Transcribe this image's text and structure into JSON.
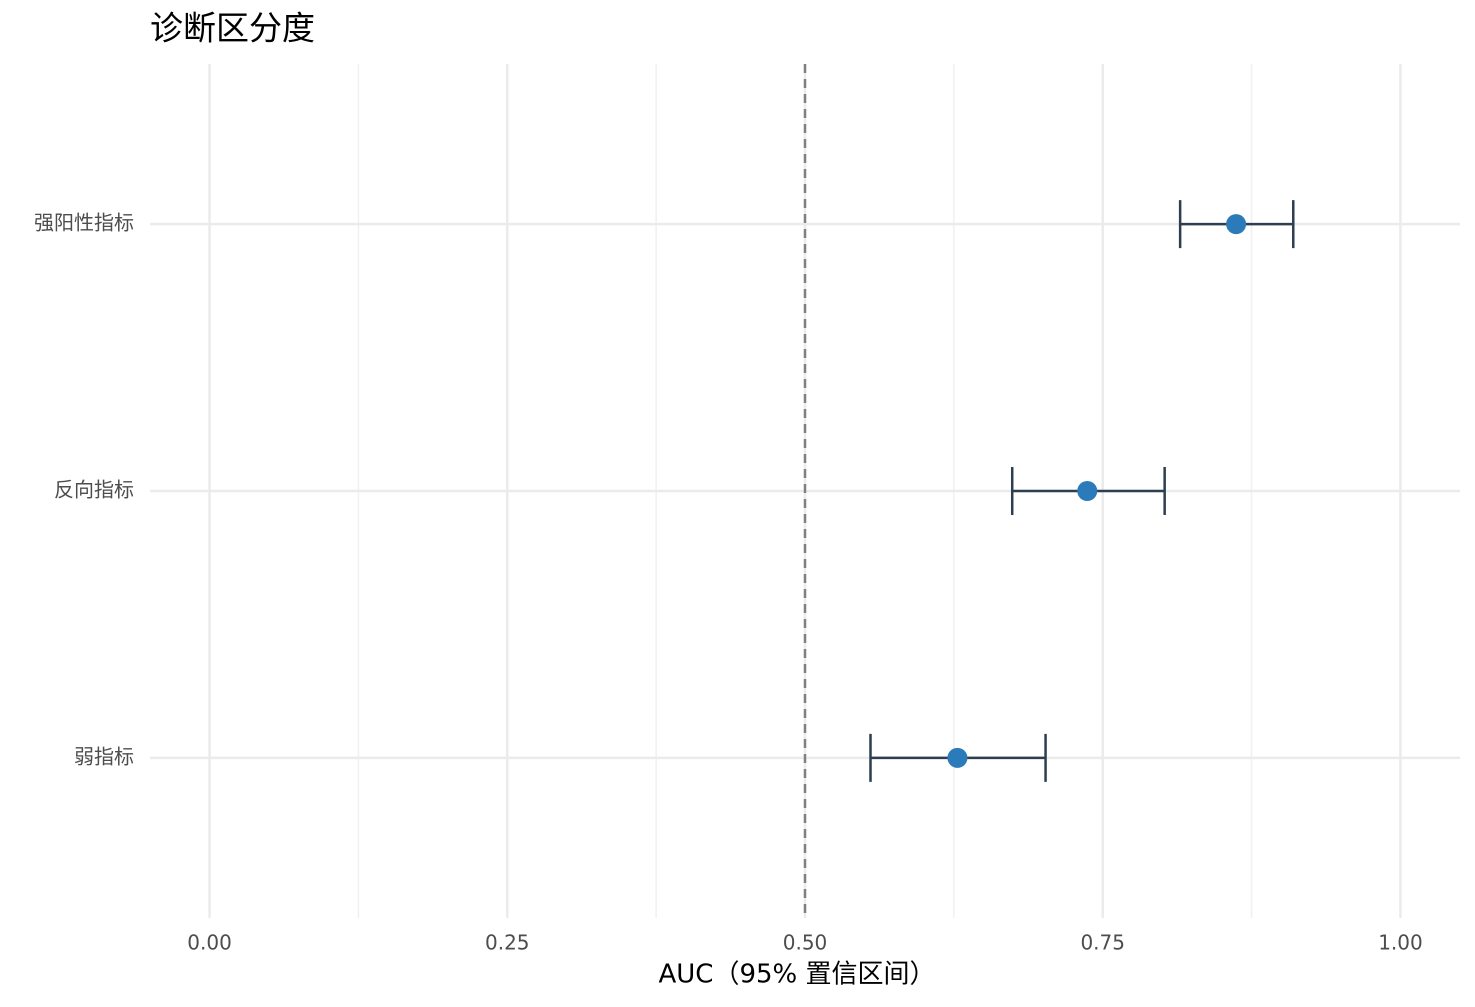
{
  "chart_data": {
    "type": "pointrange",
    "title": "诊断区分度",
    "x_label": "AUC（95% 置信区间）",
    "categories": [
      "强阳性指标",
      "反向指标",
      "弱指标"
    ],
    "values": [
      0.862,
      0.737,
      0.628
    ],
    "lower": [
      0.815,
      0.674,
      0.555
    ],
    "upper": [
      0.91,
      0.802,
      0.702
    ],
    "point_color": "#2b7bba",
    "bar_color": "#2c3e50",
    "xlim": [
      -0.05,
      1.05
    ],
    "xticks": [
      {
        "value": 0,
        "label": "0.00"
      },
      {
        "value": 0.25,
        "label": "0.25"
      },
      {
        "value": 0.5,
        "label": "0.50"
      },
      {
        "value": 0.75,
        "label": "0.75"
      },
      {
        "value": 1,
        "label": "1.00"
      }
    ],
    "grid": true,
    "minor_grid": true,
    "reference_line": 0.5,
    "reference_color": "#808080"
  }
}
